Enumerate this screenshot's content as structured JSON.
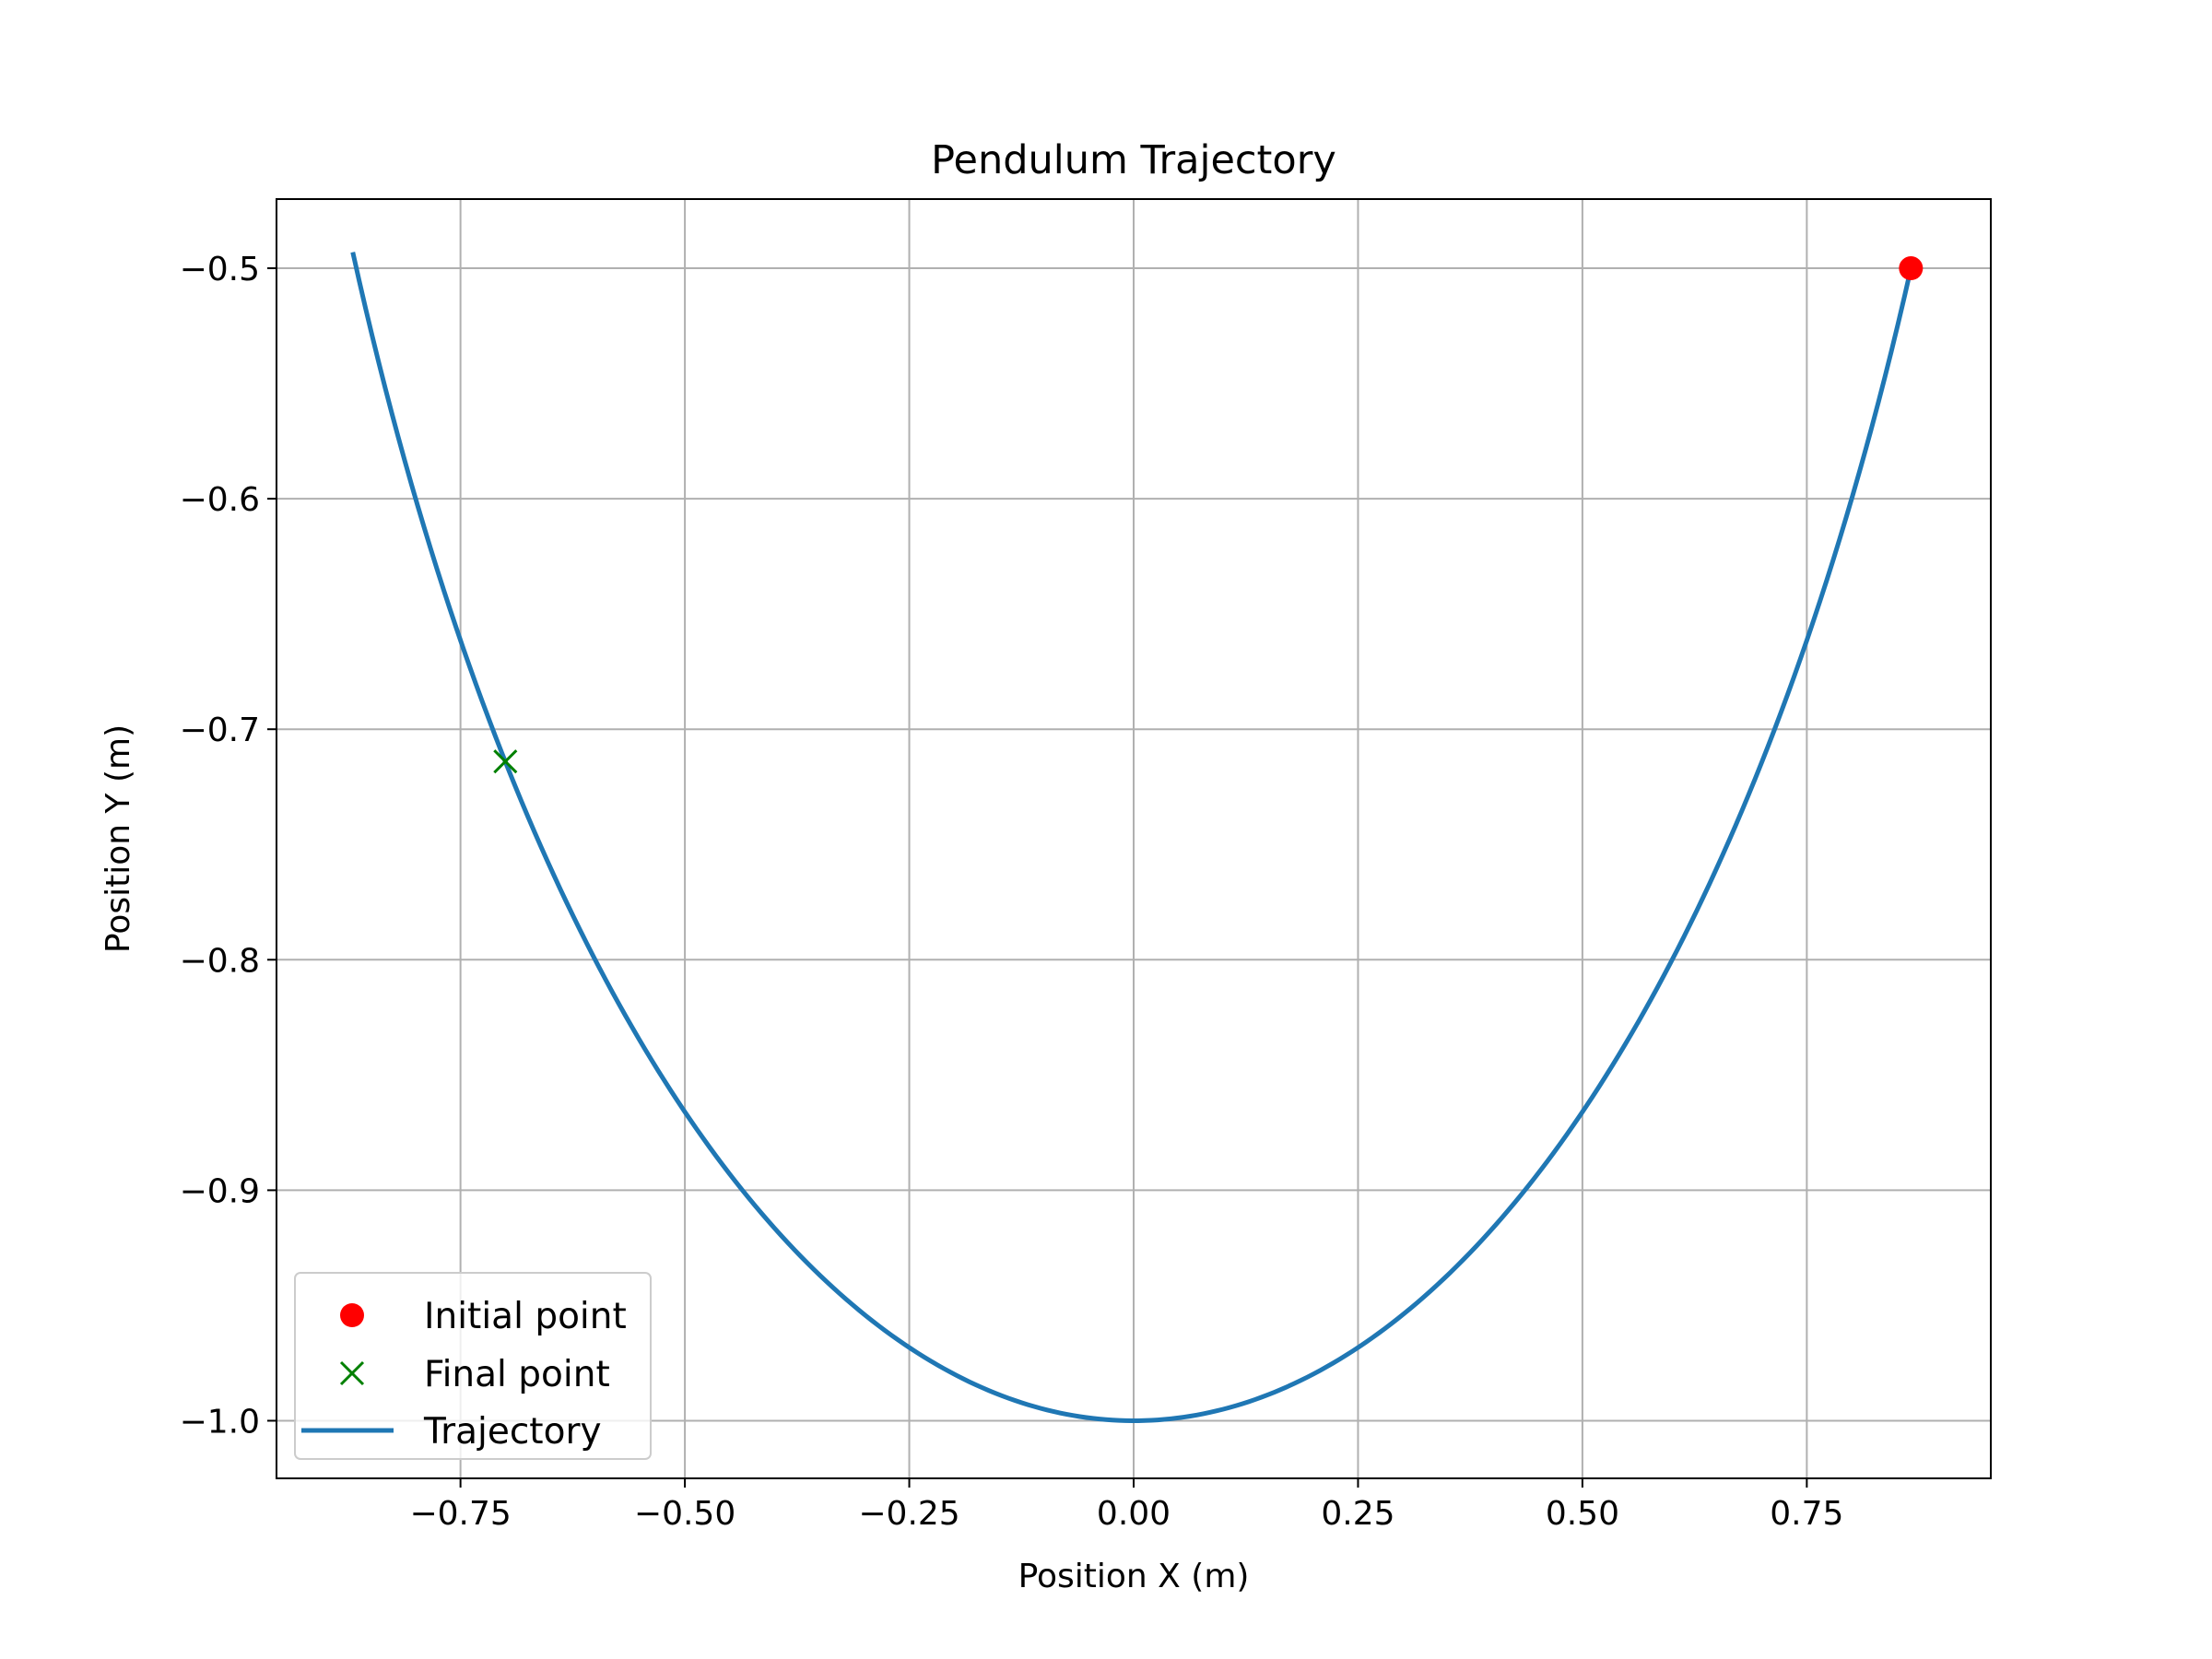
{
  "chart_data": {
    "type": "line",
    "title": "Pendulum Trajectory",
    "xlabel": "Position X (m)",
    "ylabel": "Position Y (m)",
    "xlim": [
      -0.955,
      0.955
    ],
    "ylim": [
      -1.025,
      -0.47
    ],
    "xticks": [
      -0.75,
      -0.5,
      -0.25,
      0.0,
      0.25,
      0.5,
      0.75
    ],
    "xtick_labels": [
      "−0.75",
      "−0.50",
      "−0.25",
      "0.00",
      "0.25",
      "0.50",
      "0.75"
    ],
    "yticks": [
      -0.5,
      -0.6,
      -0.7,
      -0.8,
      -0.9,
      -1.0
    ],
    "ytick_labels": [
      "−0.5",
      "−0.6",
      "−0.7",
      "−0.8",
      "−0.9",
      "−1.0"
    ],
    "grid": true,
    "legend_position": "lower-left",
    "pendulum_length": 1.0,
    "series": [
      {
        "name": "Trajectory",
        "kind": "line",
        "color": "#1f77b4",
        "x_range": [
          -0.87,
          0.866
        ]
      },
      {
        "name": "Initial point",
        "kind": "marker-circle",
        "color": "#ff0000",
        "x": 0.866,
        "y": -0.5
      },
      {
        "name": "Final point",
        "kind": "marker-x",
        "color": "#008000",
        "x": -0.7,
        "y": -0.714
      }
    ],
    "legend": [
      {
        "label": "Initial point",
        "marker": "circle",
        "color": "#ff0000"
      },
      {
        "label": "Final point",
        "marker": "x",
        "color": "#008000"
      },
      {
        "label": "Trajectory",
        "marker": "line",
        "color": "#1f77b4"
      }
    ]
  }
}
